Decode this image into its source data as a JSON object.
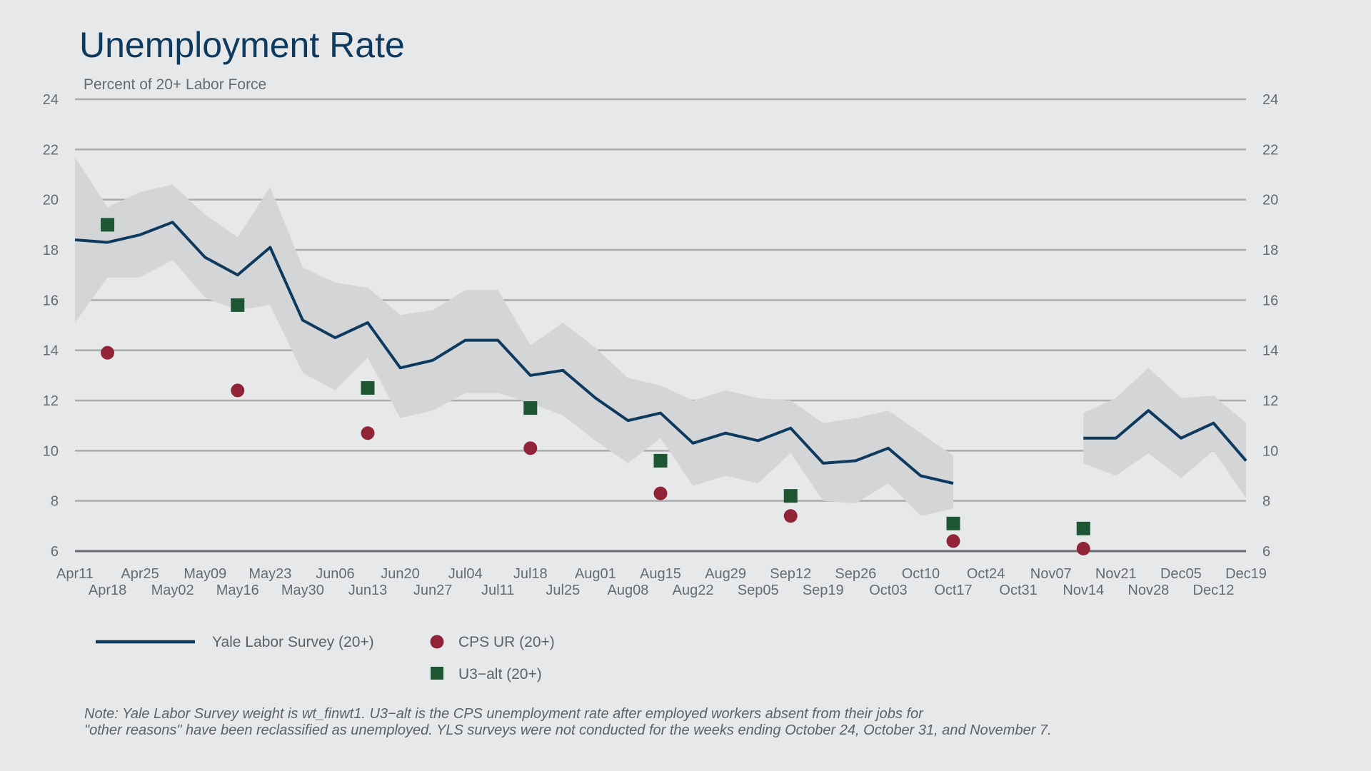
{
  "chart_data": {
    "type": "line",
    "title": "Unemployment Rate",
    "subtitle": "Percent of 20+ Labor Force",
    "ylim": [
      6,
      24
    ],
    "y_ticks": [
      6,
      8,
      10,
      12,
      14,
      16,
      18,
      20,
      22,
      24
    ],
    "grid": true,
    "x_ticks_row1": [
      "Apr11",
      "Apr25",
      "May09",
      "May23",
      "Jun06",
      "Jun20",
      "Jul04",
      "Jul18",
      "Aug01",
      "Aug15",
      "Aug29",
      "Sep12",
      "Sep26",
      "Oct10",
      "Oct24",
      "Nov07",
      "Nov21",
      "Dec05",
      "Dec19"
    ],
    "x_ticks_row2": [
      "Apr18",
      "May02",
      "May16",
      "May30",
      "Jun13",
      "Jun27",
      "Jul11",
      "Jul25",
      "Aug08",
      "Aug22",
      "Sep05",
      "Sep19",
      "Oct03",
      "Oct17",
      "Oct31",
      "Nov14",
      "Nov28",
      "Dec12"
    ],
    "x_weeks": [
      "Apr11",
      "Apr18",
      "Apr25",
      "May02",
      "May09",
      "May16",
      "May23",
      "May30",
      "Jun06",
      "Jun13",
      "Jun20",
      "Jun27",
      "Jul04",
      "Jul11",
      "Jul18",
      "Jul25",
      "Aug01",
      "Aug08",
      "Aug15",
      "Aug22",
      "Aug29",
      "Sep05",
      "Sep12",
      "Sep19",
      "Sep26",
      "Oct03",
      "Oct10",
      "Oct17",
      "Oct24",
      "Oct31",
      "Nov07",
      "Nov14",
      "Nov21",
      "Nov28",
      "Dec05",
      "Dec12",
      "Dec19"
    ],
    "series": [
      {
        "name": "Yale Labor Survey (20+)",
        "type": "line",
        "color": "#0d3a5e",
        "values": [
          18.4,
          18.3,
          18.6,
          19.1,
          17.7,
          17.0,
          18.1,
          15.2,
          14.5,
          15.1,
          13.3,
          13.6,
          14.4,
          14.4,
          13.0,
          13.2,
          12.1,
          11.2,
          11.5,
          10.3,
          10.7,
          10.4,
          10.9,
          9.5,
          9.6,
          10.1,
          9.0,
          8.7,
          null,
          null,
          null,
          10.5,
          10.5,
          11.6,
          10.5,
          11.1,
          9.6
        ],
        "band_upper": [
          21.7,
          19.7,
          20.3,
          20.6,
          19.4,
          18.5,
          20.5,
          17.3,
          16.7,
          16.5,
          15.4,
          15.6,
          16.4,
          16.4,
          14.2,
          15.1,
          14.1,
          12.9,
          12.6,
          12.0,
          12.4,
          12.1,
          12.0,
          11.1,
          11.3,
          11.6,
          10.7,
          9.8,
          null,
          null,
          null,
          11.5,
          12.1,
          13.3,
          12.1,
          12.2,
          11.1
        ],
        "band_lower": [
          15.1,
          16.9,
          16.9,
          17.6,
          16.1,
          15.6,
          15.8,
          13.1,
          12.4,
          13.7,
          11.3,
          11.6,
          12.3,
          12.3,
          11.9,
          11.4,
          10.4,
          9.5,
          10.5,
          8.6,
          9.0,
          8.7,
          9.9,
          8.0,
          7.9,
          8.7,
          7.4,
          7.7,
          null,
          null,
          null,
          9.5,
          9.0,
          9.9,
          8.9,
          10.0,
          8.1
        ],
        "band_color": "#d4d5d7"
      },
      {
        "name": "CPS UR (20+)",
        "type": "scatter",
        "marker": "circle",
        "color": "#922437",
        "points": [
          [
            "Apr18",
            13.9
          ],
          [
            "May16",
            12.4
          ],
          [
            "Jun13",
            10.7
          ],
          [
            "Jul18",
            10.1
          ],
          [
            "Aug15",
            8.3
          ],
          [
            "Sep12",
            7.4
          ],
          [
            "Oct17",
            6.4
          ],
          [
            "Nov14",
            6.1
          ]
        ]
      },
      {
        "name": "U3−alt (20+)",
        "type": "scatter",
        "marker": "square",
        "color": "#1c5632",
        "points": [
          [
            "Apr18",
            19.0
          ],
          [
            "May16",
            15.8
          ],
          [
            "Jun13",
            12.5
          ],
          [
            "Jul18",
            11.7
          ],
          [
            "Aug15",
            9.6
          ],
          [
            "Sep12",
            8.2
          ],
          [
            "Oct17",
            7.1
          ],
          [
            "Nov14",
            6.9
          ]
        ]
      }
    ],
    "legend_position": "bottom-left",
    "note_lines": [
      "Note: Yale Labor Survey weight is wt_finwt1. U3−alt is the CPS unemployment rate after employed workers absent from their jobs for",
      "\"other reasons\" have been reclassified as unemployed. YLS surveys were not conducted for the weeks ending October 24, October 31, and November 7."
    ]
  }
}
